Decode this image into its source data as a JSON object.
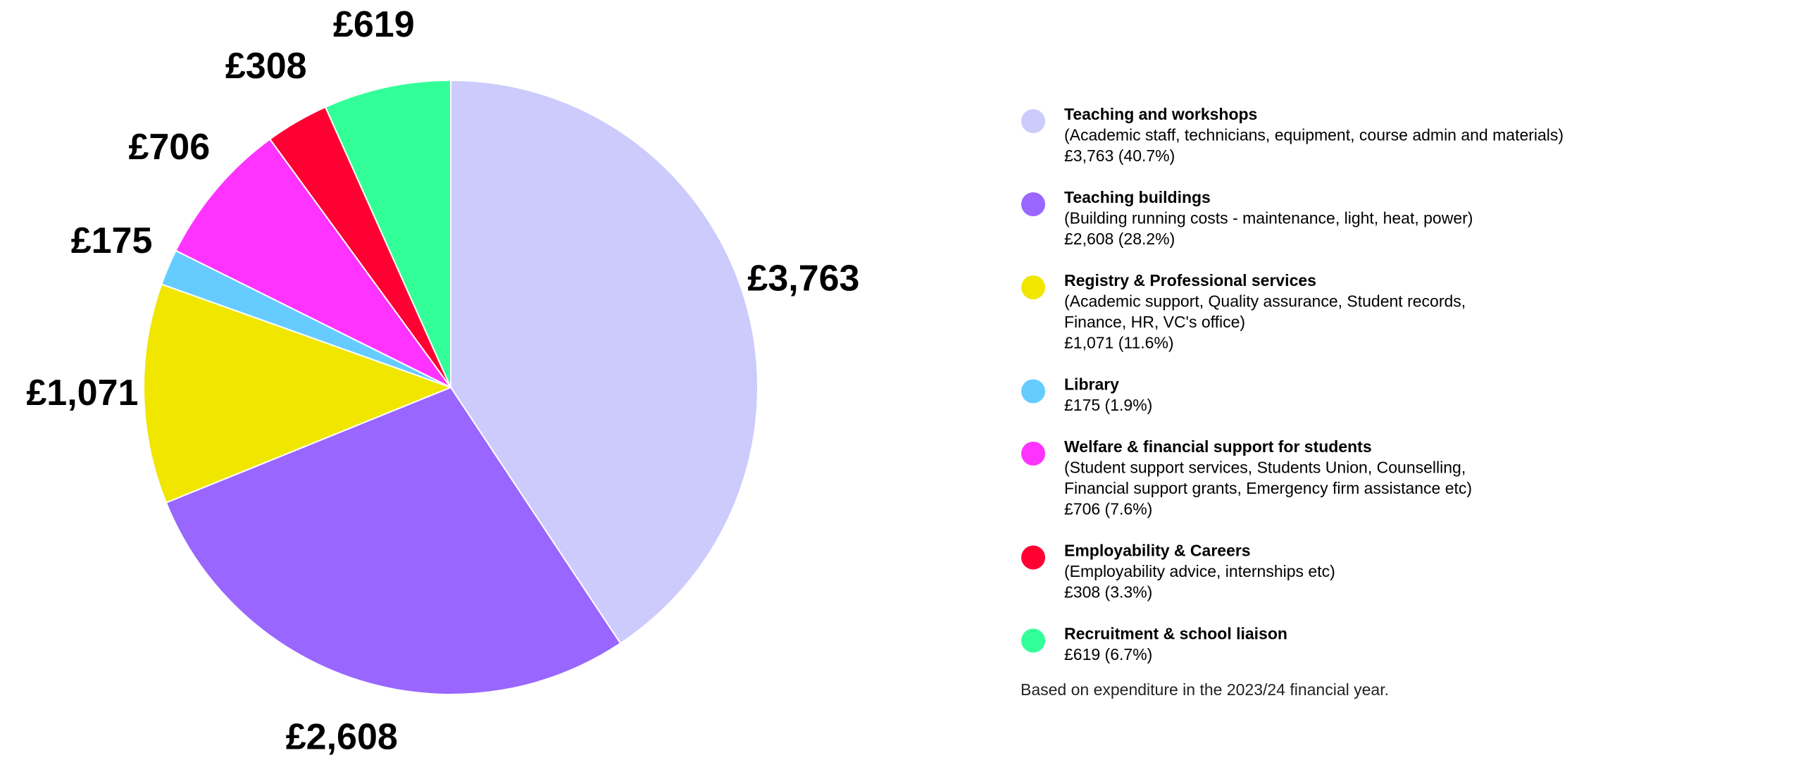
{
  "chart_data": {
    "type": "pie",
    "categories": [
      "Teaching and workshops",
      "Teaching buildings",
      "Registry & Professional services",
      "Library",
      "Welfare & financial support for students",
      "Employability & Careers",
      "Recruitment & school liaison"
    ],
    "values": [
      3763,
      2608,
      1071,
      175,
      706,
      308,
      619
    ],
    "value_labels": [
      "£3,763",
      "£2,608",
      "£1,071",
      "£175",
      "£706",
      "£308",
      "£619"
    ],
    "colors": [
      "#cccbfc",
      "#9966ff",
      "#f0e600",
      "#66ccff",
      "#ff33ff",
      "#ff0033",
      "#33ff99"
    ],
    "descriptions": [
      [
        "(Academic staff, technicians, equipment, course admin and materials)"
      ],
      [
        "(Building running costs - maintenance, light, heat, power)"
      ],
      [
        "(Academic support, Quality assurance, Student records,",
        "Finance, HR, VC's office)"
      ],
      null,
      [
        "(Student support services, Students Union, Counselling,",
        "Financial support grants, Emergency firm assistance etc)"
      ],
      [
        "(Employability advice, internships etc)"
      ],
      null
    ],
    "detail_labels": [
      "£3,763 (40.7%)",
      "£2,608 (28.2%)",
      "£1,071 (11.6%)",
      "£175 (1.9%)",
      "£706 (7.6%)",
      "£308 (3.3%)",
      "£619 (6.7%)"
    ],
    "footnote": "Based on expenditure in the 2023/24 financial year."
  }
}
